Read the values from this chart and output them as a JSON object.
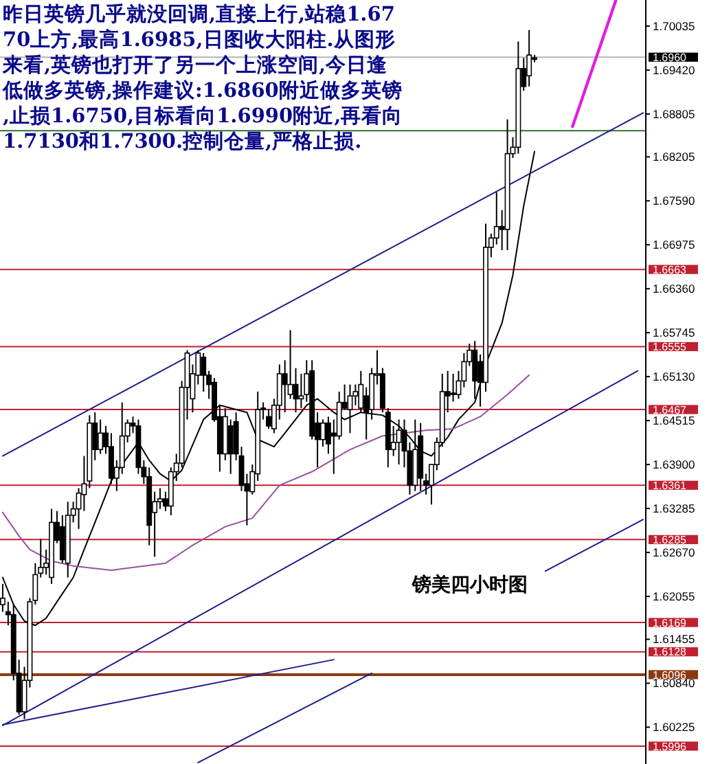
{
  "chart_data": {
    "type": "candlestick",
    "title": "镑美四小时图",
    "annotations": [
      "昨日英镑几乎就没回调,直接上行,站稳1.6770上方,最高1.6985,日图收大阳柱.从图形来看,英镑也打开了另一个上涨空间,今日逢低做多英镑,操作建议:1.6860附近做多英镑,止损1.6750,目标看向1.6990附近,再看向1.7130和1.7300.控制仓量,严格止损."
    ],
    "categories": [
      null,
      null,
      null,
      null,
      null,
      null,
      null,
      null,
      null,
      null,
      null,
      null,
      null,
      null,
      null,
      null,
      null,
      null,
      null,
      null,
      null,
      null,
      null,
      null,
      null,
      null,
      null,
      null,
      null,
      null,
      null,
      null,
      null,
      null,
      null,
      null,
      null,
      null,
      null,
      null,
      null,
      null,
      null,
      null,
      null,
      null,
      null,
      null,
      null,
      null,
      null,
      null,
      null,
      null,
      null,
      null,
      null,
      null,
      null,
      null,
      null,
      null,
      null,
      null,
      null,
      null,
      null,
      null,
      null,
      null,
      null,
      null,
      null,
      null,
      null,
      null,
      null,
      null,
      null,
      null,
      null,
      null,
      null,
      null,
      null,
      null,
      null,
      null,
      null,
      null,
      null,
      null,
      null,
      null,
      null,
      null,
      null,
      null,
      null,
      null,
      null,
      null,
      null,
      null,
      null,
      null,
      null,
      null,
      null,
      null,
      null,
      null,
      null,
      null,
      null,
      null,
      null,
      null,
      null
    ],
    "ohlc": [
      [
        1.6194,
        1.6223,
        1.6184,
        1.6203
      ],
      [
        1.6184,
        1.6198,
        1.6165,
        1.618
      ],
      [
        1.618,
        1.6194,
        1.6088,
        1.6098
      ],
      [
        1.6098,
        1.6117,
        1.604,
        1.6044
      ],
      [
        1.6044,
        1.6107,
        1.6034,
        1.6088
      ],
      [
        1.6088,
        1.6203,
        1.6078,
        1.6198
      ],
      [
        1.62,
        1.6252,
        1.6194,
        1.6236
      ],
      [
        1.6238,
        1.6286,
        1.6232,
        1.6246
      ],
      [
        1.6246,
        1.6271,
        1.6236,
        1.6252
      ],
      [
        1.6232,
        1.6328,
        1.6223,
        1.6309
      ],
      [
        1.6309,
        1.6325,
        1.628,
        1.6284
      ],
      [
        1.6303,
        1.6319,
        1.6252,
        1.6257
      ],
      [
        1.6252,
        1.6338,
        1.6232,
        1.6319
      ],
      [
        1.6319,
        1.6338,
        1.6309,
        1.6328
      ],
      [
        1.6328,
        1.6357,
        1.63,
        1.635
      ],
      [
        1.6348,
        1.6402,
        1.6325,
        1.6363
      ],
      [
        1.6367,
        1.6459,
        1.6357,
        1.6448
      ],
      [
        1.6448,
        1.6463,
        1.6396,
        1.6411
      ],
      [
        1.6411,
        1.6453,
        1.6405,
        1.6434
      ],
      [
        1.6434,
        1.6444,
        1.6405,
        1.6415
      ],
      [
        1.6415,
        1.6434,
        1.6363,
        1.6371
      ],
      [
        1.6371,
        1.6396,
        1.6353,
        1.6386
      ],
      [
        1.6386,
        1.6477,
        1.6377,
        1.643
      ],
      [
        1.643,
        1.6453,
        1.6421,
        1.6448
      ],
      [
        1.6448,
        1.6457,
        1.6434,
        1.6444
      ],
      [
        1.6444,
        1.6453,
        1.6377,
        1.6386
      ],
      [
        1.6386,
        1.6396,
        1.6363,
        1.6373
      ],
      [
        1.6373,
        1.6386,
        1.6277,
        1.6305
      ],
      [
        1.6323,
        1.6352,
        1.6261,
        1.6338
      ],
      [
        1.6338,
        1.6357,
        1.6328,
        1.6342
      ],
      [
        1.6342,
        1.6352,
        1.6325,
        1.6332
      ],
      [
        1.6332,
        1.6386,
        1.6319,
        1.638
      ],
      [
        1.638,
        1.6405,
        1.6367,
        1.6392
      ],
      [
        1.6392,
        1.6507,
        1.6386,
        1.6498
      ],
      [
        1.6498,
        1.655,
        1.6453,
        1.6546
      ],
      [
        1.6482,
        1.653,
        1.6463,
        1.6517
      ],
      [
        1.6515,
        1.655,
        1.6502,
        1.6546
      ],
      [
        1.654,
        1.6546,
        1.6492,
        1.6515
      ],
      [
        1.6515,
        1.6521,
        1.6482,
        1.6502
      ],
      [
        1.6505,
        1.6511,
        1.645,
        1.6453
      ],
      [
        1.6457,
        1.6473,
        1.638,
        1.6405
      ],
      [
        1.6405,
        1.6469,
        1.6396,
        1.6457
      ],
      [
        1.6444,
        1.6453,
        1.6377,
        1.6405
      ],
      [
        1.645,
        1.6463,
        1.6396,
        1.6405
      ],
      [
        1.6402,
        1.6415,
        1.6353,
        1.6361
      ],
      [
        1.6363,
        1.6377,
        1.6305,
        1.6353
      ],
      [
        1.6352,
        1.639,
        1.6348,
        1.638
      ],
      [
        1.6377,
        1.6492,
        1.6367,
        1.6467
      ],
      [
        1.6469,
        1.6477,
        1.6453,
        1.6467
      ],
      [
        1.6457,
        1.6467,
        1.644,
        1.6444
      ],
      [
        1.644,
        1.6482,
        1.6434,
        1.6473
      ],
      [
        1.6473,
        1.653,
        1.6453,
        1.6517
      ],
      [
        1.6517,
        1.6536,
        1.6463,
        1.6502
      ],
      [
        1.6488,
        1.6578,
        1.6482,
        1.6502
      ],
      [
        1.6502,
        1.6525,
        1.6463,
        1.6482
      ],
      [
        1.6482,
        1.6517,
        1.6469,
        1.6486
      ],
      [
        1.6488,
        1.6536,
        1.6478,
        1.6517
      ],
      [
        1.6521,
        1.6536,
        1.6425,
        1.643
      ],
      [
        1.6448,
        1.6463,
        1.6386,
        1.6425
      ],
      [
        1.6425,
        1.6453,
        1.6415,
        1.6448
      ],
      [
        1.6448,
        1.6457,
        1.6405,
        1.6419
      ],
      [
        1.6434,
        1.6453,
        1.6377,
        1.643
      ],
      [
        1.643,
        1.6492,
        1.6425,
        1.6477
      ],
      [
        1.6477,
        1.6502,
        1.6467,
        1.6469
      ],
      [
        1.6467,
        1.6502,
        1.6434,
        1.6486
      ],
      [
        1.6486,
        1.6502,
        1.6473,
        1.6492
      ],
      [
        1.6469,
        1.6521,
        1.6463,
        1.6502
      ],
      [
        1.6486,
        1.6498,
        1.6425,
        1.6463
      ],
      [
        1.6467,
        1.6525,
        1.6453,
        1.6517
      ],
      [
        1.6515,
        1.655,
        1.6502,
        1.6517
      ],
      [
        1.6517,
        1.6525,
        1.6463,
        1.6469
      ],
      [
        1.6463,
        1.6469,
        1.6386,
        1.6411
      ],
      [
        1.6411,
        1.6444,
        1.6402,
        1.6421
      ],
      [
        1.6421,
        1.6453,
        1.639,
        1.6438
      ],
      [
        1.6438,
        1.6453,
        1.6386,
        1.6409
      ],
      [
        1.6409,
        1.6421,
        1.6348,
        1.6361
      ],
      [
        1.6361,
        1.6453,
        1.6353,
        1.6411
      ],
      [
        1.643,
        1.6448,
        1.6353,
        1.6371
      ],
      [
        1.6367,
        1.6377,
        1.6348,
        1.6361
      ],
      [
        1.6361,
        1.639,
        1.6334,
        1.639
      ],
      [
        1.639,
        1.6428,
        1.6382,
        1.6421
      ],
      [
        1.6421,
        1.6517,
        1.6415,
        1.6492
      ],
      [
        1.6492,
        1.6521,
        1.6463,
        1.6486
      ],
      [
        1.649,
        1.6517,
        1.6478,
        1.6488
      ],
      [
        1.6488,
        1.6521,
        1.6482,
        1.6507
      ],
      [
        1.6507,
        1.6546,
        1.6498,
        1.6534
      ],
      [
        1.6534,
        1.6559,
        1.6528,
        1.655
      ],
      [
        1.655,
        1.6563,
        1.6482,
        1.6507
      ],
      [
        1.6534,
        1.6544,
        1.6471,
        1.6505
      ],
      [
        1.6505,
        1.6727,
        1.6492,
        1.6694
      ],
      [
        1.6694,
        1.6713,
        1.668,
        1.6707
      ],
      [
        1.6707,
        1.6771,
        1.6698,
        1.6723
      ],
      [
        1.6723,
        1.6746,
        1.669,
        1.6719
      ],
      [
        1.6719,
        1.6873,
        1.669,
        1.6825
      ],
      [
        1.6825,
        1.6848,
        1.6819,
        1.6834
      ],
      [
        1.6834,
        1.6982,
        1.6825,
        1.6944
      ],
      [
        1.6944,
        1.6959,
        1.6913,
        1.6919
      ],
      [
        1.6934,
        1.6998,
        1.6919,
        1.6963
      ],
      [
        1.6959,
        1.6963,
        1.6953,
        1.6957
      ],
      null,
      null,
      null,
      null,
      null,
      null,
      null,
      null,
      null,
      null,
      null,
      null,
      null,
      null,
      null,
      null,
      null,
      null,
      null,
      null
    ],
    "series": [
      {
        "type": "line",
        "color": "#000000",
        "values": [
          1.6232,
          null,
          1.6194,
          null,
          1.6171,
          null,
          1.6165,
          null,
          1.6175,
          null,
          1.6198,
          null,
          null,
          1.6232,
          null,
          1.6271,
          null,
          1.6309,
          null,
          null,
          1.6367,
          null,
          1.639,
          null,
          null,
          1.6421,
          null,
          1.6396,
          null,
          1.6377,
          null,
          1.6367,
          null,
          1.6382,
          null,
          null,
          null,
          1.6453,
          null,
          null,
          1.6473,
          null,
          1.6469,
          null,
          null,
          1.6463,
          null,
          1.6425,
          null,
          null,
          1.6415,
          null,
          1.6434,
          null,
          null,
          null,
          1.6473,
          null,
          1.6482,
          null,
          null,
          1.6463,
          null,
          1.6453,
          null,
          null,
          1.6463,
          null,
          null,
          null,
          1.6459,
          null,
          null,
          1.6444,
          null,
          1.6428,
          null,
          1.6409,
          null,
          1.6402,
          null,
          null,
          1.6428,
          null,
          1.6453,
          null,
          null,
          1.6477,
          null,
          1.653,
          null,
          null,
          1.6588,
          null,
          1.6655,
          null,
          1.6752,
          null,
          1.6828,
          null,
          null,
          null,
          null,
          null,
          null,
          null,
          null,
          null,
          null,
          null,
          null,
          null,
          null,
          null,
          null,
          null,
          null,
          null,
          null
        ]
      },
      {
        "type": "line",
        "color": "#9b4fa0",
        "values": [
          1.6323,
          null,
          null,
          1.629,
          null,
          1.6271,
          null,
          null,
          null,
          1.6255,
          null,
          null,
          null,
          1.6248,
          null,
          null,
          null,
          null,
          null,
          null,
          1.6242,
          null,
          null,
          null,
          null,
          null,
          null,
          null,
          null,
          null,
          1.6252,
          null,
          null,
          null,
          null,
          1.6277,
          null,
          null,
          null,
          null,
          null,
          1.6303,
          null,
          null,
          null,
          null,
          1.6315,
          null,
          null,
          null,
          null,
          1.6361,
          null,
          null,
          null,
          null,
          null,
          1.638,
          null,
          null,
          null,
          null,
          null,
          null,
          1.6411,
          null,
          null,
          null,
          null,
          null,
          1.643,
          null,
          null,
          null,
          null,
          null,
          null,
          null,
          1.6438,
          null,
          null,
          null,
          null,
          1.644,
          null,
          null,
          null,
          null,
          1.6457,
          null,
          null,
          null,
          null,
          1.6488,
          null,
          null,
          null,
          1.6515,
          null,
          null,
          null,
          null,
          null,
          null,
          null,
          null,
          null,
          null,
          null,
          null,
          null,
          null,
          null,
          null,
          null,
          null,
          null,
          null,
          null
        ]
      },
      {
        "type": "line",
        "color": "#1c1c8c",
        "values": [
          1.6402,
          null,
          null,
          null,
          null,
          null,
          null,
          null,
          null,
          null,
          null,
          null,
          null,
          null,
          null,
          null,
          null,
          null,
          null,
          null,
          null,
          null,
          null,
          null,
          null,
          null,
          null,
          null,
          null,
          null,
          null,
          null,
          null,
          null,
          null,
          null,
          null,
          null,
          null,
          null,
          null,
          null,
          null,
          null,
          null,
          null,
          null,
          null,
          null,
          null,
          null,
          null,
          null,
          null,
          null,
          null,
          null,
          null,
          null,
          null,
          null,
          null,
          null,
          null,
          null,
          null,
          null,
          null,
          null,
          null,
          null,
          null,
          null,
          null,
          null,
          null,
          null,
          null,
          null,
          null,
          null,
          null,
          null,
          null,
          null,
          null,
          null,
          null,
          null,
          null,
          null,
          null,
          null,
          null,
          null,
          null,
          null,
          null,
          null,
          null,
          null,
          null,
          null,
          null,
          null,
          null,
          null,
          null,
          null,
          null,
          null,
          null,
          null,
          null,
          null,
          null,
          null,
          null,
          1.6882
        ]
      },
      {
        "type": "line",
        "color": "#1c1c8c",
        "values": [
          1.6025,
          null,
          null,
          null,
          null,
          null,
          null,
          null,
          null,
          null,
          null,
          null,
          null,
          null,
          null,
          null,
          null,
          null,
          null,
          null,
          null,
          null,
          null,
          null,
          null,
          null,
          null,
          null,
          null,
          null,
          null,
          null,
          null,
          null,
          null,
          null,
          null,
          null,
          null,
          null,
          null,
          null,
          null,
          null,
          null,
          null,
          null,
          null,
          null,
          null,
          null,
          null,
          null,
          null,
          null,
          null,
          null,
          null,
          null,
          null,
          null,
          null,
          null,
          null,
          null,
          null,
          null,
          null,
          null,
          null,
          null,
          null,
          null,
          null,
          null,
          null,
          null,
          null,
          null,
          null,
          null,
          null,
          null,
          null,
          null,
          null,
          null,
          null,
          null,
          null,
          null,
          null,
          null,
          null,
          null,
          null,
          null,
          null,
          null,
          null,
          null,
          null,
          null,
          null,
          null,
          null,
          null,
          null,
          null,
          null,
          null,
          null,
          null,
          null,
          null,
          null,
          null,
          1.6521,
          null
        ]
      },
      {
        "type": "line",
        "color": "#1c1c8c",
        "values": [
          1.6026,
          null,
          null,
          null,
          null,
          null,
          null,
          null,
          null,
          null,
          null,
          null,
          null,
          null,
          null,
          null,
          null,
          null,
          null,
          null,
          null,
          null,
          null,
          null,
          null,
          null,
          null,
          null,
          null,
          null,
          null,
          null,
          null,
          null,
          null,
          null,
          null,
          null,
          null,
          null,
          null,
          null,
          null,
          null,
          null,
          null,
          null,
          null,
          null,
          null,
          null,
          null,
          null,
          null,
          null,
          null,
          null,
          null,
          null,
          null,
          null,
          1.6117,
          null,
          null,
          null,
          null,
          null,
          null,
          null,
          null,
          null,
          null,
          null,
          null,
          null,
          null,
          null,
          null,
          null,
          null,
          null,
          null,
          null,
          null,
          null,
          null,
          null,
          null,
          null,
          null,
          null,
          null,
          null,
          null,
          null,
          null,
          null,
          null,
          null,
          null,
          null,
          null,
          null,
          null,
          null,
          null,
          null,
          null,
          null,
          null,
          null,
          null,
          null,
          null,
          null,
          null,
          null,
          null,
          null
        ]
      },
      {
        "type": "line",
        "color": "#1c1c8c",
        "values": [
          null,
          null,
          null,
          null,
          null,
          null,
          null,
          null,
          null,
          null,
          null,
          null,
          null,
          null,
          null,
          null,
          null,
          null,
          null,
          null,
          null,
          null,
          null,
          null,
          null,
          null,
          null,
          null,
          null,
          null,
          null,
          null,
          null,
          null,
          null,
          null,
          1.5973,
          null,
          null,
          null,
          null,
          null,
          null,
          null,
          null,
          null,
          null,
          null,
          null,
          null,
          null,
          null,
          null,
          null,
          null,
          null,
          null,
          null,
          null,
          null,
          null,
          null,
          null,
          null,
          null,
          null,
          null,
          null,
          1.6098,
          null,
          null,
          null,
          null,
          null,
          null,
          null,
          null,
          null,
          null,
          null,
          null,
          null,
          null,
          null,
          null,
          null,
          null,
          null,
          null,
          null,
          null,
          null,
          null,
          null,
          null,
          null,
          null,
          null,
          null,
          null,
          null,
          null,
          null,
          null,
          null,
          null,
          null,
          null,
          null,
          null,
          null,
          null,
          null,
          null,
          null,
          null,
          null,
          null,
          null
        ]
      },
      {
        "type": "line",
        "color": "#1c1c8c",
        "values": [
          null,
          null,
          null,
          null,
          null,
          null,
          null,
          null,
          null,
          null,
          null,
          null,
          null,
          null,
          null,
          null,
          null,
          null,
          null,
          null,
          null,
          null,
          null,
          null,
          null,
          null,
          null,
          null,
          null,
          null,
          null,
          null,
          null,
          null,
          null,
          null,
          null,
          null,
          null,
          null,
          null,
          null,
          null,
          null,
          null,
          null,
          null,
          null,
          null,
          null,
          null,
          null,
          null,
          null,
          null,
          null,
          null,
          null,
          null,
          null,
          null,
          null,
          null,
          null,
          null,
          null,
          null,
          null,
          null,
          null,
          null,
          null,
          null,
          null,
          null,
          null,
          null,
          null,
          null,
          null,
          null,
          null,
          null,
          null,
          null,
          null,
          null,
          null,
          null,
          null,
          null,
          null,
          null,
          null,
          null,
          null,
          null,
          null,
          null,
          null,
          1.6241,
          null,
          null,
          null,
          null,
          null,
          null,
          null,
          null,
          null,
          null,
          null,
          null,
          null,
          null,
          null,
          null,
          null,
          1.6313
        ]
      },
      {
        "type": "line",
        "color": "#e020e0",
        "values": [
          null,
          null,
          null,
          null,
          null,
          null,
          null,
          null,
          null,
          null,
          null,
          null,
          null,
          null,
          null,
          null,
          null,
          null,
          null,
          null,
          null,
          null,
          null,
          null,
          null,
          null,
          null,
          null,
          null,
          null,
          null,
          null,
          null,
          null,
          null,
          null,
          null,
          null,
          null,
          null,
          null,
          null,
          null,
          null,
          null,
          null,
          null,
          null,
          null,
          null,
          null,
          null,
          null,
          null,
          null,
          null,
          null,
          null,
          null,
          null,
          null,
          null,
          null,
          null,
          null,
          null,
          null,
          null,
          null,
          null,
          null,
          null,
          null,
          null,
          null,
          null,
          null,
          null,
          null,
          null,
          null,
          null,
          null,
          null,
          null,
          null,
          null,
          null,
          null,
          null,
          null,
          null,
          null,
          null,
          null,
          null,
          null,
          null,
          null,
          null,
          null,
          null,
          null,
          null,
          null,
          1.6863,
          null,
          null,
          null,
          null,
          null,
          null,
          null,
          1.704,
          null,
          null,
          null,
          null,
          null
        ]
      }
    ],
    "ylim": [
      1.5971,
      1.704
    ],
    "yticks": [
      1.70035,
      {
        "value": 1.6942,
        "label": "1.69420"
      },
      1.68805,
      1.68205,
      {
        "value": 1.6759,
        "label": "1.67590"
      },
      1.66975,
      {
        "value": 1.6636,
        "label": "1.66360"
      },
      1.65745,
      {
        "value": 1.6513,
        "label": "1.65130"
      },
      1.64515,
      {
        "value": 1.639,
        "label": "1.63900"
      },
      1.63285,
      {
        "value": 1.6267,
        "label": "1.62670"
      },
      1.62055,
      1.61455,
      {
        "value": 1.6084,
        "label": "1.60840"
      },
      1.60225
    ],
    "ref_lines": [
      {
        "axis": "y",
        "value": 1.696,
        "label": "1.6960",
        "color": "#b4b4b4"
      },
      {
        "axis": "y",
        "value": 1.6857,
        "color": "#2f6f2f"
      },
      {
        "axis": "y",
        "value": 1.6663,
        "label": "1.6663",
        "color": "#c02030"
      },
      {
        "axis": "y",
        "value": 1.6555,
        "label": "1.6555",
        "color": "#c02030"
      },
      {
        "axis": "y",
        "value": 1.6467,
        "label": "1.6467",
        "color": "#c02030"
      },
      {
        "axis": "y",
        "value": 1.6361,
        "label": "1.6361",
        "color": "#c02030"
      },
      {
        "axis": "y",
        "value": 1.6285,
        "label": "1.6285",
        "color": "#c02030"
      },
      {
        "axis": "y",
        "value": 1.6169,
        "label": "1.6169",
        "color": "#c02030"
      },
      {
        "axis": "y",
        "value": 1.6128,
        "label": "1.6128",
        "color": "#c02030"
      },
      {
        "axis": "y",
        "value": 1.6096,
        "label": "1.6096",
        "color": "#8b3a0f"
      },
      {
        "axis": "y",
        "value": 1.5996,
        "label": "1.5996",
        "color": "#c02030"
      }
    ]
  }
}
